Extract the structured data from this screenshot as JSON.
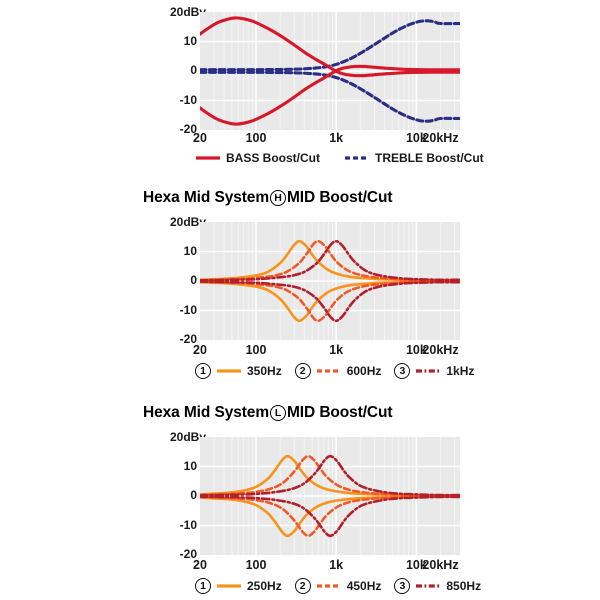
{
  "page": {
    "background": "#ffffff"
  },
  "colors": {
    "plot_bg": "#e9e9e9",
    "grid": "#ffffff",
    "axis_text": "#1a1a1a",
    "bass_red": "#d7182b",
    "treble_navy": "#2b2e83",
    "mid_orange": "#f7941e",
    "mid_orange_red": "#f15a25",
    "mid_dark_red": "#b2202c"
  },
  "chart_data": [
    {
      "name": "bass-treble-boost-cut",
      "type": "line",
      "x_scale": "log",
      "x_unit": "Hz",
      "x_range": [
        20,
        20000
      ],
      "y_range": [
        -20,
        20
      ],
      "grid": true,
      "y_axis": {
        "top_label": "20dBv",
        "ticks": [
          {
            "v": 10,
            "label": "10"
          },
          {
            "v": 0,
            "label": "0"
          },
          {
            "v": -10,
            "label": "-10"
          },
          {
            "v": -20,
            "label": "-20"
          }
        ]
      },
      "x_ticks": [
        {
          "f": 20,
          "label": "20"
        },
        {
          "f": 100,
          "label": "100"
        },
        {
          "f": 1000,
          "label": "1k"
        },
        {
          "f": 10000,
          "label": "10k"
        },
        {
          "f": 20000,
          "label": "20kHz"
        }
      ],
      "series": [
        {
          "name": "TREBLE Boost/Cut",
          "style": "dashed",
          "color_key": "treble_navy",
          "mirror": true,
          "points": [
            [
              20,
              0.45
            ],
            [
              50,
              0.45
            ],
            [
              100,
              0.45
            ],
            [
              180,
              0.5
            ],
            [
              300,
              0.6
            ],
            [
              450,
              0.8
            ],
            [
              650,
              1.2
            ],
            [
              900,
              1.9
            ],
            [
              1200,
              3.0
            ],
            [
              1700,
              4.9
            ],
            [
              2400,
              7.3
            ],
            [
              3300,
              9.7
            ],
            [
              4600,
              12.2
            ],
            [
              6300,
              14.3
            ],
            [
              8500,
              15.9
            ],
            [
              11000,
              16.8
            ],
            [
              14000,
              17.0
            ],
            [
              17000,
              16.6
            ],
            [
              20000,
              16.1
            ]
          ]
        },
        {
          "name": "BASS Boost/Cut",
          "style": "solid",
          "color_key": "bass_red",
          "mirror": true,
          "points": [
            [
              20,
              12.5
            ],
            [
              25,
              14.4
            ],
            [
              32,
              16.2
            ],
            [
              42,
              17.4
            ],
            [
              55,
              18.0
            ],
            [
              70,
              17.7
            ],
            [
              90,
              16.9
            ],
            [
              120,
              15.4
            ],
            [
              160,
              13.6
            ],
            [
              220,
              11.3
            ],
            [
              300,
              8.8
            ],
            [
              420,
              6.0
            ],
            [
              560,
              3.9
            ],
            [
              700,
              2.4
            ],
            [
              850,
              1.0
            ],
            [
              1000,
              -0.1
            ],
            [
              1200,
              -0.9
            ],
            [
              1500,
              -1.4
            ],
            [
              2000,
              -1.6
            ],
            [
              2700,
              -1.4
            ],
            [
              3600,
              -1.1
            ],
            [
              5000,
              -0.8
            ],
            [
              7500,
              -0.55
            ],
            [
              11000,
              -0.45
            ],
            [
              20000,
              -0.4
            ]
          ]
        }
      ],
      "legend": [
        {
          "swatch": "solid",
          "color_key": "bass_red",
          "label": "BASS Boost/Cut"
        },
        {
          "swatch": "dashed",
          "color_key": "treble_navy",
          "label": "TREBLE Boost/Cut"
        }
      ]
    },
    {
      "name": "hexa-mid-h-boost-cut",
      "title": {
        "pre": "Hexa Mid System",
        "circled": "H",
        "post": "MID Boost/Cut"
      },
      "type": "line",
      "x_scale": "log",
      "x_unit": "Hz",
      "x_range": [
        20,
        20000
      ],
      "y_range": [
        -20,
        20
      ],
      "grid": true,
      "y_axis": {
        "top_label": "20dBv",
        "ticks": [
          {
            "v": 10,
            "label": "10"
          },
          {
            "v": 0,
            "label": "0"
          },
          {
            "v": -10,
            "label": "-10"
          },
          {
            "v": -20,
            "label": "-20"
          }
        ]
      },
      "x_ticks": [
        {
          "f": 20,
          "label": "20"
        },
        {
          "f": 100,
          "label": "100"
        },
        {
          "f": 1000,
          "label": "1k"
        },
        {
          "f": 10000,
          "label": "10k"
        },
        {
          "f": 20000,
          "label": "20kHz"
        }
      ],
      "series": [
        {
          "name": "350Hz",
          "style": "solid",
          "color_key": "mid_orange",
          "mirror": true,
          "points": [
            [
              20,
              0.4
            ],
            [
              30,
              0.6
            ],
            [
              45,
              0.8
            ],
            [
              70,
              1.3
            ],
            [
              100,
              1.9
            ],
            [
              140,
              3.1
            ],
            [
              200,
              6.1
            ],
            [
              250,
              9.3
            ],
            [
              300,
              12.3
            ],
            [
              350,
              13.5
            ],
            [
              420,
              11.9
            ],
            [
              500,
              9.0
            ],
            [
              600,
              6.4
            ],
            [
              800,
              3.7
            ],
            [
              1100,
              2.2
            ],
            [
              1600,
              1.3
            ],
            [
              2400,
              0.9
            ],
            [
              3500,
              0.6
            ],
            [
              5000,
              0.5
            ],
            [
              10000,
              0.3
            ],
            [
              20000,
              0.2
            ]
          ]
        },
        {
          "name": "600Hz",
          "style": "dashed",
          "color_key": "mid_orange_red",
          "mirror": true,
          "points": [
            [
              20,
              0.3
            ],
            [
              35,
              0.4
            ],
            [
              50,
              0.6
            ],
            [
              80,
              0.8
            ],
            [
              120,
              1.3
            ],
            [
              170,
              1.8
            ],
            [
              240,
              3.1
            ],
            [
              340,
              5.9
            ],
            [
              430,
              9.3
            ],
            [
              520,
              12.5
            ],
            [
              600,
              13.5
            ],
            [
              720,
              11.9
            ],
            [
              860,
              9.0
            ],
            [
              1030,
              6.3
            ],
            [
              1370,
              3.7
            ],
            [
              1900,
              2.2
            ],
            [
              2700,
              1.4
            ],
            [
              4100,
              0.9
            ],
            [
              6000,
              0.6
            ],
            [
              10000,
              0.4
            ],
            [
              20000,
              0.3
            ]
          ]
        },
        {
          "name": "1kHz",
          "style": "dashdot",
          "color_key": "mid_dark_red",
          "mirror": true,
          "points": [
            [
              20,
              0.2
            ],
            [
              50,
              0.4
            ],
            [
              100,
              0.6
            ],
            [
              170,
              1.1
            ],
            [
              280,
              1.8
            ],
            [
              400,
              3.1
            ],
            [
              560,
              5.8
            ],
            [
              700,
              9.0
            ],
            [
              850,
              12.2
            ],
            [
              1000,
              13.5
            ],
            [
              1200,
              11.9
            ],
            [
              1440,
              8.9
            ],
            [
              1700,
              6.5
            ],
            [
              2300,
              3.6
            ],
            [
              3200,
              2.1
            ],
            [
              4700,
              1.3
            ],
            [
              7000,
              0.8
            ],
            [
              10000,
              0.6
            ],
            [
              14000,
              0.5
            ],
            [
              20000,
              0.4
            ]
          ]
        }
      ],
      "legend": [
        {
          "num": "1",
          "swatch": "solid",
          "color_key": "mid_orange",
          "label": "350Hz"
        },
        {
          "num": "2",
          "swatch": "dashed",
          "color_key": "mid_orange_red",
          "label": "600Hz"
        },
        {
          "num": "3",
          "swatch": "dashdot",
          "color_key": "mid_dark_red",
          "label": "1kHz"
        }
      ]
    },
    {
      "name": "hexa-mid-l-boost-cut",
      "title": {
        "pre": "Hexa Mid System",
        "circled": "L",
        "post": "MID Boost/Cut"
      },
      "type": "line",
      "x_scale": "log",
      "x_unit": "Hz",
      "x_range": [
        20,
        20000
      ],
      "y_range": [
        -20,
        20
      ],
      "grid": true,
      "y_axis": {
        "top_label": "20dBv",
        "ticks": [
          {
            "v": 10,
            "label": "10"
          },
          {
            "v": 0,
            "label": "0"
          },
          {
            "v": -10,
            "label": "-10"
          },
          {
            "v": -20,
            "label": "-20"
          }
        ]
      },
      "x_ticks": [
        {
          "f": 20,
          "label": "20"
        },
        {
          "f": 100,
          "label": "100"
        },
        {
          "f": 1000,
          "label": "1k"
        },
        {
          "f": 10000,
          "label": "10k"
        },
        {
          "f": 20000,
          "label": "20kHz"
        }
      ],
      "series": [
        {
          "name": "250Hz",
          "style": "solid",
          "color_key": "mid_orange",
          "mirror": true,
          "points": [
            [
              20,
              0.5
            ],
            [
              30,
              0.8
            ],
            [
              45,
              1.1
            ],
            [
              70,
              1.8
            ],
            [
              100,
              3.1
            ],
            [
              140,
              5.8
            ],
            [
              175,
              9.0
            ],
            [
              215,
              12.4
            ],
            [
              250,
              13.5
            ],
            [
              300,
              11.9
            ],
            [
              360,
              8.9
            ],
            [
              430,
              6.3
            ],
            [
              570,
              3.7
            ],
            [
              800,
              2.1
            ],
            [
              1180,
              1.3
            ],
            [
              1750,
              0.8
            ],
            [
              2500,
              0.6
            ],
            [
              5000,
              0.4
            ],
            [
              10000,
              0.3
            ],
            [
              20000,
              0.2
            ]
          ]
        },
        {
          "name": "450Hz",
          "style": "dashed",
          "color_key": "mid_orange_red",
          "mirror": true,
          "points": [
            [
              20,
              0.4
            ],
            [
              40,
              0.6
            ],
            [
              65,
              0.9
            ],
            [
              100,
              1.4
            ],
            [
              150,
              2.4
            ],
            [
              215,
              4.4
            ],
            [
              300,
              8.3
            ],
            [
              380,
              12.1
            ],
            [
              450,
              13.5
            ],
            [
              540,
              11.9
            ],
            [
              650,
              8.8
            ],
            [
              775,
              6.3
            ],
            [
              1030,
              3.7
            ],
            [
              1440,
              2.1
            ],
            [
              2100,
              1.3
            ],
            [
              3100,
              0.8
            ],
            [
              4500,
              0.6
            ],
            [
              9000,
              0.4
            ],
            [
              20000,
              0.2
            ]
          ]
        },
        {
          "name": "850Hz",
          "style": "dashdot",
          "color_key": "mid_dark_red",
          "mirror": true,
          "points": [
            [
              20,
              0.2
            ],
            [
              50,
              0.4
            ],
            [
              100,
              0.7
            ],
            [
              170,
              1.3
            ],
            [
              280,
              2.4
            ],
            [
              400,
              4.3
            ],
            [
              560,
              8.1
            ],
            [
              720,
              12.2
            ],
            [
              850,
              13.5
            ],
            [
              1020,
              11.9
            ],
            [
              1220,
              8.9
            ],
            [
              1450,
              6.4
            ],
            [
              1950,
              3.6
            ],
            [
              2700,
              2.2
            ],
            [
              4000,
              1.3
            ],
            [
              5900,
              0.8
            ],
            [
              8500,
              0.6
            ],
            [
              14000,
              0.4
            ],
            [
              20000,
              0.3
            ]
          ]
        }
      ],
      "legend": [
        {
          "num": "1",
          "swatch": "solid",
          "color_key": "mid_orange",
          "label": "250Hz"
        },
        {
          "num": "2",
          "swatch": "dashed",
          "color_key": "mid_orange_red",
          "label": "450Hz"
        },
        {
          "num": "3",
          "swatch": "dashdot",
          "color_key": "mid_dark_red",
          "label": "850Hz"
        }
      ]
    }
  ]
}
